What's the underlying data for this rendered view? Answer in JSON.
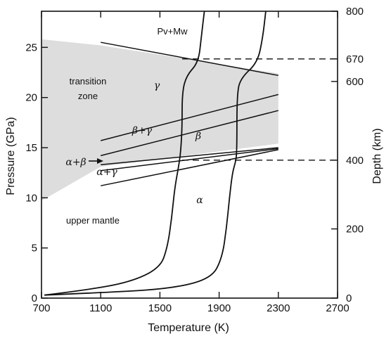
{
  "chart_data": {
    "type": "line",
    "xlabel": "Temperature (K)",
    "ylabel": "Pressure (GPa)",
    "y2label": "Depth (km)",
    "xlim": [
      700,
      2700
    ],
    "ylim": [
      0,
      28.6
    ],
    "grid": false,
    "x_ticks": [
      "700",
      "1100",
      "1500",
      "1900",
      "2300",
      "2700"
    ],
    "y_ticks": [
      "0",
      "5",
      "10",
      "15",
      "20",
      "25"
    ],
    "y2_ticks": [
      {
        "label": "0",
        "pressure": 0
      },
      {
        "label": "200",
        "pressure": 6.9
      },
      {
        "label": "400",
        "pressure": 13.75
      },
      {
        "label": "600",
        "pressure": 21.6
      },
      {
        "label": "670",
        "pressure": 23.85
      },
      {
        "label": "800",
        "pressure": 28.6
      }
    ],
    "discontinuity_depths": [
      {
        "label": "400",
        "pressure": 13.75
      },
      {
        "label": "670",
        "pressure": 23.85
      }
    ],
    "region_labels": {
      "transition_zone": [
        "transition",
        "zone"
      ],
      "upper_mantle": "upper mantle",
      "pv_mw": "Pv+Mw",
      "alpha": "α",
      "beta": "β",
      "gamma": "γ",
      "beta_gamma": "β+γ",
      "alpha_beta": "α+β",
      "alpha_gamma": "α+γ"
    },
    "shaded_region": [
      [
        700,
        25.8
      ],
      [
        1100,
        25.2
      ],
      [
        2300,
        22.4
      ],
      [
        2300,
        15.4
      ],
      [
        1100,
        13.1
      ],
      [
        700,
        9.7
      ]
    ],
    "phase_boundaries": [
      {
        "points": [
          [
            1100,
            25.5
          ],
          [
            2300,
            22.2
          ]
        ]
      },
      {
        "points": [
          [
            1100,
            15.7
          ],
          [
            2300,
            20.3
          ]
        ]
      },
      {
        "points": [
          [
            1100,
            14.2
          ],
          [
            2300,
            18.7
          ]
        ]
      },
      {
        "points": [
          [
            1100,
            13.3
          ],
          [
            2300,
            15.0
          ]
        ]
      },
      {
        "points": [
          [
            1100,
            12.7
          ],
          [
            2300,
            14.9
          ]
        ]
      },
      {
        "points": [
          [
            1100,
            11.2
          ],
          [
            2300,
            14.8
          ]
        ]
      }
    ],
    "geotherms": [
      {
        "points": [
          [
            720,
            0.3
          ],
          [
            1000,
            0.8
          ],
          [
            1300,
            1.6
          ],
          [
            1500,
            3.0
          ],
          [
            1550,
            5.0
          ],
          [
            1580,
            8.0
          ],
          [
            1600,
            11.0
          ],
          [
            1625,
            13.0
          ],
          [
            1640,
            14.5
          ],
          [
            1650,
            17.0
          ],
          [
            1650,
            20.5
          ],
          [
            1680,
            22.2
          ],
          [
            1760,
            23.5
          ],
          [
            1780,
            26.0
          ],
          [
            1800,
            28.6
          ]
        ]
      },
      {
        "points": [
          [
            720,
            0.3
          ],
          [
            1200,
            0.6
          ],
          [
            1600,
            1.0
          ],
          [
            1850,
            2.0
          ],
          [
            1920,
            4.0
          ],
          [
            1950,
            7.0
          ],
          [
            1970,
            10.0
          ],
          [
            1990,
            12.5
          ],
          [
            2010,
            13.5
          ],
          [
            2020,
            14.5
          ],
          [
            2020,
            20.5
          ],
          [
            2050,
            22.0
          ],
          [
            2160,
            23.5
          ],
          [
            2195,
            26.0
          ],
          [
            2215,
            28.6
          ]
        ]
      }
    ]
  }
}
